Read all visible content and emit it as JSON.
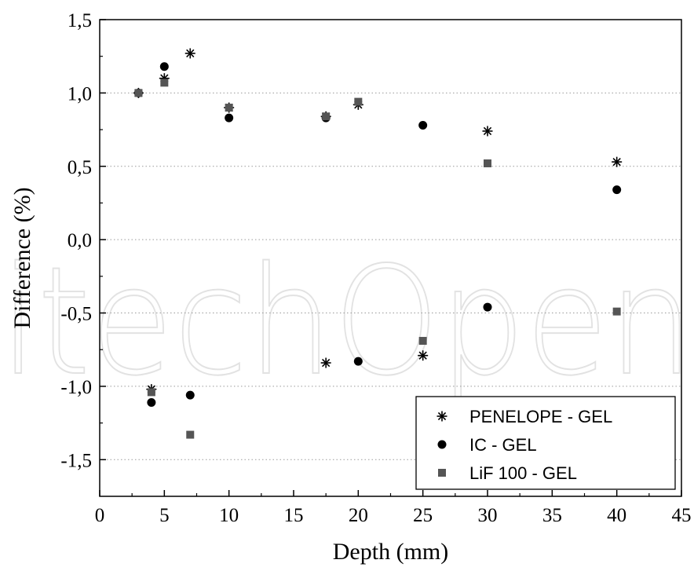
{
  "chart_data": {
    "type": "scatter",
    "title": "",
    "xlabel": "Depth (mm)",
    "ylabel": "Difference (%)",
    "xlim": [
      0,
      45
    ],
    "ylim": [
      -1.75,
      1.5
    ],
    "x_ticks": [
      0,
      5,
      10,
      15,
      20,
      25,
      30,
      35,
      40,
      45
    ],
    "x_tick_labels": [
      "0",
      "5",
      "10",
      "15",
      "20",
      "25",
      "30",
      "35",
      "40",
      "45"
    ],
    "y_ticks": [
      1.5,
      1.0,
      0.5,
      0.0,
      -0.5,
      -1.0,
      -1.5
    ],
    "y_tick_labels": [
      "1,5",
      "1,0",
      "0,5",
      "0,0",
      "-0,5",
      "-1,0",
      "-1,5"
    ],
    "grid": "dotted horizontal at y ticks",
    "legend_position": "bottom-right",
    "watermark": "itechOpen",
    "series": [
      {
        "name": "PENELOPE - GEL",
        "marker": "asterisk",
        "color": "#000000",
        "points": [
          [
            3,
            1.0
          ],
          [
            4,
            -1.02
          ],
          [
            5,
            1.1
          ],
          [
            7,
            1.27
          ],
          [
            10,
            0.9
          ],
          [
            17.5,
            0.84
          ],
          [
            17.5,
            -0.84
          ],
          [
            20,
            0.92
          ],
          [
            25,
            -0.79
          ],
          [
            30,
            0.74
          ],
          [
            40,
            0.53
          ]
        ]
      },
      {
        "name": "IC - GEL",
        "marker": "circle",
        "color": "#000000",
        "points": [
          [
            3,
            1.0
          ],
          [
            4,
            -1.11
          ],
          [
            5,
            1.18
          ],
          [
            7,
            -1.06
          ],
          [
            10,
            0.83
          ],
          [
            17.5,
            0.83
          ],
          [
            20,
            -0.83
          ],
          [
            25,
            0.78
          ],
          [
            30,
            -0.46
          ],
          [
            40,
            0.34
          ]
        ]
      },
      {
        "name": "LiF 100 - GEL",
        "marker": "square",
        "color": "#555555",
        "points": [
          [
            3,
            1.0
          ],
          [
            4,
            -1.04
          ],
          [
            5,
            1.07
          ],
          [
            7,
            -1.33
          ],
          [
            10,
            0.9
          ],
          [
            17.5,
            0.84
          ],
          [
            20,
            0.94
          ],
          [
            25,
            -0.69
          ],
          [
            30,
            0.52
          ],
          [
            40,
            -0.49
          ]
        ]
      }
    ]
  }
}
